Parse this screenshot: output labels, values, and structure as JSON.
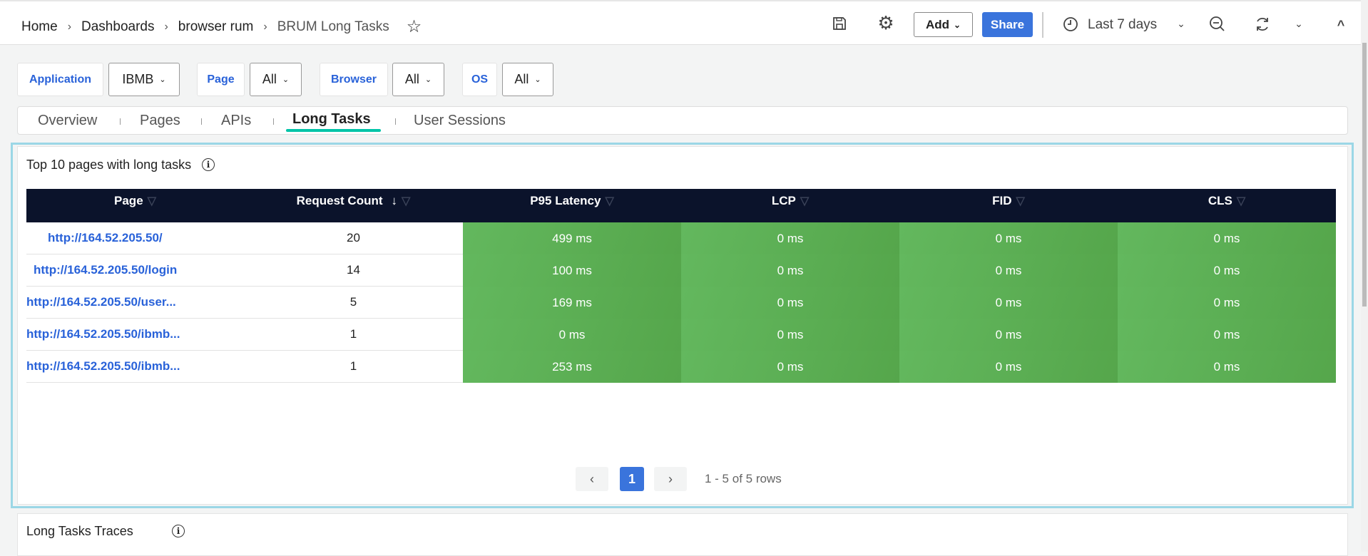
{
  "breadcrumb": [
    "Home",
    "Dashboards",
    "browser rum",
    "BRUM Long Tasks"
  ],
  "toolbar": {
    "add_label": "Add",
    "share_label": "Share",
    "time_range": "Last 7 days",
    "accent": "#3a74dc"
  },
  "filters": [
    {
      "label": "Application",
      "value": "IBMB"
    },
    {
      "label": "Page",
      "value": "All"
    },
    {
      "label": "Browser",
      "value": "All"
    },
    {
      "label": "OS",
      "value": "All"
    }
  ],
  "tabs": [
    {
      "label": "Overview"
    },
    {
      "label": "Pages"
    },
    {
      "label": "APIs"
    },
    {
      "label": "Long Tasks",
      "active": true
    },
    {
      "label": "User Sessions"
    }
  ],
  "panel": {
    "title": "Top 10 pages with long tasks",
    "columns": [
      "Page",
      "Request Count",
      "P95 Latency",
      "LCP",
      "FID",
      "CLS"
    ],
    "sort_column": "Request Count",
    "sort_direction": "descending",
    "rows": [
      [
        "http://164.52.205.50/",
        "20",
        "499 ms",
        "0 ms",
        "0 ms",
        "0 ms"
      ],
      [
        "http://164.52.205.50/login",
        "14",
        "100 ms",
        "0 ms",
        "0 ms",
        "0 ms"
      ],
      [
        "http://164.52.205.50/user...",
        "5",
        "169 ms",
        "0 ms",
        "0 ms",
        "0 ms"
      ],
      [
        "http://164.52.205.50/ibmb...",
        "1",
        "0 ms",
        "0 ms",
        "0 ms",
        "0 ms"
      ],
      [
        "http://164.52.205.50/ibmb...",
        "1",
        "253 ms",
        "0 ms",
        "0 ms",
        "0 ms"
      ]
    ],
    "pagination": {
      "current_page": "1",
      "summary": "1 - 5 of 5 rows"
    },
    "cell_color": "#5cb054"
  },
  "panel2": {
    "title": "Long Tasks Traces"
  }
}
